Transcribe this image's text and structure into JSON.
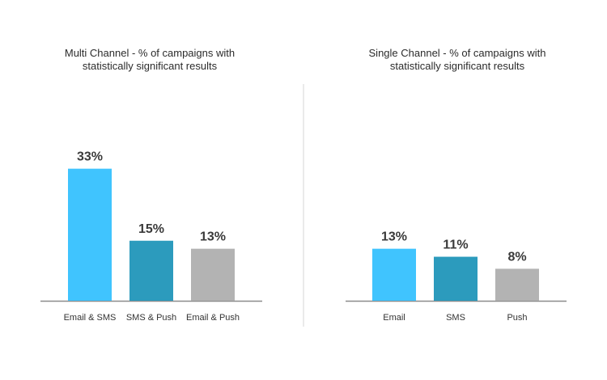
{
  "chart_data": [
    {
      "type": "bar",
      "title_lines": [
        "Multi Channel - % of campaigns with",
        "statistically significant results"
      ],
      "categories": [
        "Email & SMS",
        "SMS & Push",
        "Email & Push"
      ],
      "values": [
        33,
        15,
        13
      ],
      "value_labels": [
        "33%",
        "15%",
        "13%"
      ],
      "colors": [
        "#40c4fe",
        "#2c9bbd",
        "#b3b3b3"
      ],
      "xlabel": "",
      "ylabel": "",
      "ylim": [
        0,
        40
      ],
      "grid": false,
      "legend": "none"
    },
    {
      "type": "bar",
      "title_lines": [
        "Single Channel - % of campaigns with",
        "statistically significant results"
      ],
      "categories": [
        "Email",
        "SMS",
        "Push"
      ],
      "values": [
        13,
        11,
        8
      ],
      "value_labels": [
        "13%",
        "11%",
        "8%"
      ],
      "colors": [
        "#40c4fe",
        "#2c9bbd",
        "#b3b3b3"
      ],
      "xlabel": "",
      "ylabel": "",
      "ylim": [
        0,
        40
      ],
      "grid": false,
      "legend": "none"
    }
  ],
  "colors": {
    "axis": "#8c8c8c",
    "divider": "#d4d4d4",
    "title_text": "#2b2b2b",
    "label_text": "#333333",
    "value_text": "#3a3a3a"
  }
}
